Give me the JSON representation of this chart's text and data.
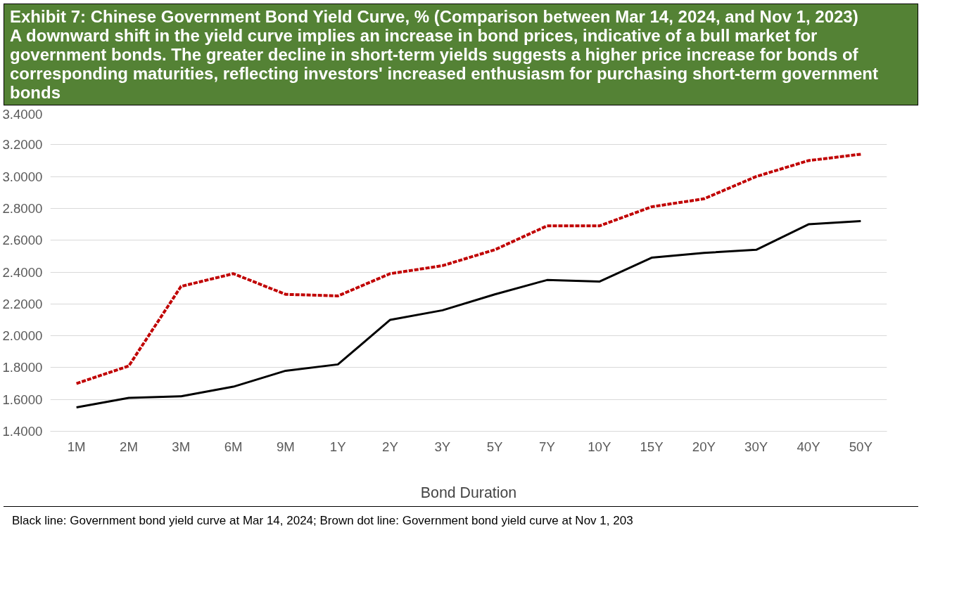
{
  "chart_data": {
    "type": "line",
    "title": "Exhibit 7: Chinese Government Bond Yield Curve, % (Comparison between Mar 14, 2024, and Nov 1, 2023)",
    "subtitle": "A downward shift in the yield curve implies an increase in bond prices, indicative of a bull market for government bonds. The greater decline in short-term yields suggests a higher price increase for bonds of corresponding maturities, reflecting investors' increased enthusiasm for purchasing short-term government bonds",
    "xlabel": "Bond Duration",
    "annotations": [
      "Black line: Government bond yield curve at Mar 14, 2024; Brown dot line: Government bond yield curve at Nov 1, 203"
    ],
    "categories": [
      "1M",
      "2M",
      "3M",
      "6M",
      "9M",
      "1Y",
      "2Y",
      "3Y",
      "5Y",
      "7Y",
      "10Y",
      "15Y",
      "20Y",
      "30Y",
      "40Y",
      "50Y"
    ],
    "series": [
      {
        "color": "#000000",
        "line_style": "solid",
        "values": [
          1.55,
          1.61,
          1.62,
          1.68,
          1.78,
          1.82,
          2.1,
          2.16,
          2.26,
          2.35,
          2.34,
          2.49,
          2.52,
          2.54,
          2.7,
          2.72
        ]
      },
      {
        "color": "#c00000",
        "line_style": "dashed",
        "values": [
          1.7,
          1.81,
          2.31,
          2.39,
          2.26,
          2.25,
          2.39,
          2.44,
          2.54,
          2.69,
          2.69,
          2.81,
          2.86,
          3.0,
          3.1,
          3.14
        ]
      }
    ],
    "ylim": [
      1.4,
      3.4
    ],
    "yticks": [
      {
        "value": 1.4,
        "label": "1.4000"
      },
      {
        "value": 1.6,
        "label": "1.6000"
      },
      {
        "value": 1.8,
        "label": "1.8000"
      },
      {
        "value": 2.0,
        "label": "2.0000"
      },
      {
        "value": 2.2,
        "label": "2.2000"
      },
      {
        "value": 2.4,
        "label": "2.4000"
      },
      {
        "value": 2.6,
        "label": "2.6000"
      },
      {
        "value": 2.8,
        "label": "2.8000"
      },
      {
        "value": 3.0,
        "label": "3.0000"
      },
      {
        "value": 3.2,
        "label": "3.2000"
      },
      {
        "value": 3.4,
        "label": "3.4000"
      }
    ],
    "grid": "y"
  }
}
